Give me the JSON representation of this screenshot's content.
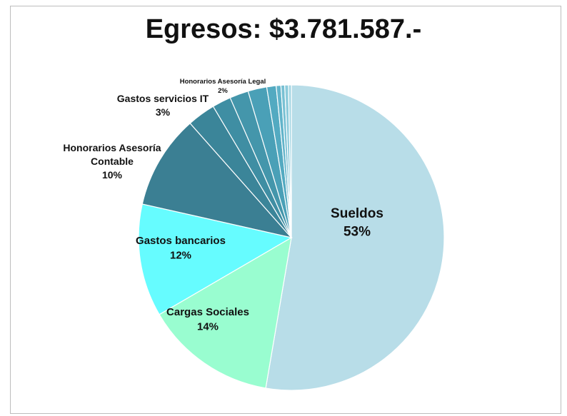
{
  "chart_data": {
    "type": "pie",
    "title": "Egresos: $3.781.587.-",
    "slices": [
      {
        "label": "Sueldos",
        "value": 53,
        "pct_label": "53%",
        "color": "#b8dde8",
        "show_label": true
      },
      {
        "label": "Cargas Sociales",
        "value": 14,
        "pct_label": "14%",
        "color": "#99fdd0",
        "show_label": true
      },
      {
        "label": "Gastos bancarios",
        "value": 12,
        "pct_label": "12%",
        "color": "#66fcff",
        "show_label": true
      },
      {
        "label": "Honorarios Asesoría Contable",
        "value": 10,
        "pct_label": "10%",
        "color": "#3b7f93",
        "show_label": true
      },
      {
        "label": "Gastos servicios IT",
        "value": 3,
        "pct_label": "3%",
        "color": "#3b8599",
        "show_label": true
      },
      {
        "label": "",
        "value": 2,
        "pct_label": "",
        "color": "#3f8ea3",
        "show_label": false
      },
      {
        "label": "",
        "value": 2,
        "pct_label": "",
        "color": "#4496ab",
        "show_label": false
      },
      {
        "label": "Honorarios Asesoría Legal",
        "value": 2,
        "pct_label": "2%",
        "color": "#4aa0b7",
        "show_label": true
      },
      {
        "label": "",
        "value": 1,
        "pct_label": "",
        "color": "#53aac1",
        "show_label": false
      },
      {
        "label": "",
        "value": 0.5,
        "pct_label": "",
        "color": "#62b4ca",
        "show_label": false
      },
      {
        "label": "",
        "value": 0.4,
        "pct_label": "",
        "color": "#78c0d3",
        "show_label": false
      },
      {
        "label": "",
        "value": 0.4,
        "pct_label": "",
        "color": "#8ccbdb",
        "show_label": false
      },
      {
        "label": "",
        "value": 0.3,
        "pct_label": "",
        "color": "#a3d6e3",
        "show_label": false
      }
    ]
  }
}
